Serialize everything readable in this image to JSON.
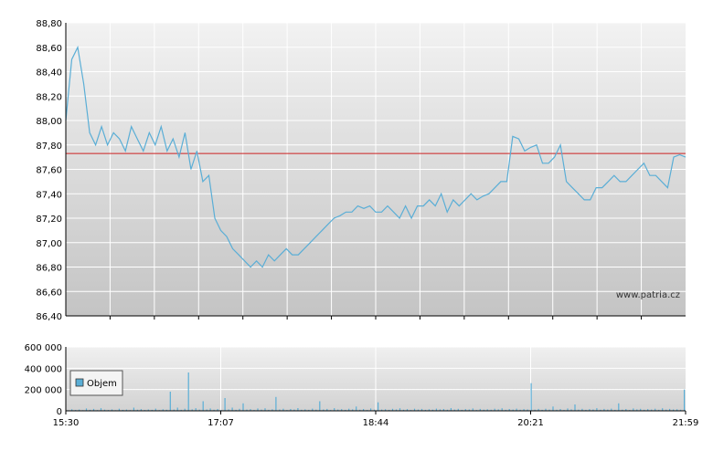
{
  "chart_data": [
    {
      "type": "line",
      "title": "",
      "xlabel": "",
      "ylabel": "",
      "ylim": [
        86.4,
        88.8
      ],
      "yticks": [
        "88,80",
        "88,60",
        "88,40",
        "88,20",
        "88,00",
        "87,80",
        "87,60",
        "87,40",
        "87,20",
        "87,00",
        "86,80",
        "86,60",
        "86,40"
      ],
      "reference_line": 87.73,
      "watermark": "www.patria.cz",
      "grid": true,
      "colors": {
        "line": "#5aaed6",
        "reference": "#cc2222",
        "grid": "#ffffff"
      },
      "series": [
        {
          "values": [
            88.0,
            88.5,
            88.6,
            88.3,
            87.9,
            87.8,
            87.95,
            87.8,
            87.9,
            87.85,
            87.75,
            87.95,
            87.85,
            87.75,
            87.9,
            87.8,
            87.95,
            87.75,
            87.85,
            87.7,
            87.9,
            87.6,
            87.75,
            87.5,
            87.55,
            87.2,
            87.1,
            87.05,
            86.95,
            86.9,
            86.85,
            86.8,
            86.85,
            86.8,
            86.9,
            86.85,
            86.9,
            86.95,
            86.9,
            86.9,
            86.95,
            87.0,
            87.05,
            87.1,
            87.15,
            87.2,
            87.22,
            87.25,
            87.25,
            87.3,
            87.28,
            87.3,
            87.25,
            87.25,
            87.3,
            87.25,
            87.2,
            87.3,
            87.2,
            87.3,
            87.3,
            87.35,
            87.3,
            87.4,
            87.25,
            87.35,
            87.3,
            87.35,
            87.4,
            87.35,
            87.38,
            87.4,
            87.45,
            87.5,
            87.5,
            87.87,
            87.85,
            87.75,
            87.78,
            87.8,
            87.65,
            87.65,
            87.7,
            87.8,
            87.5,
            87.45,
            87.4,
            87.35,
            87.35,
            87.45,
            87.45,
            87.5,
            87.55,
            87.5,
            87.5,
            87.55,
            87.6,
            87.65,
            87.55,
            87.55,
            87.5,
            87.45,
            87.7,
            87.72,
            87.7
          ],
          "x_start": "15:30",
          "x_end": "21:59"
        }
      ],
      "xticks": [
        "15:30",
        "17:07",
        "18:44",
        "20:21",
        "21:59"
      ]
    },
    {
      "type": "bar",
      "ylim": [
        0,
        600000
      ],
      "yticks": [
        "600 000",
        "400 000",
        "200 000",
        "0"
      ],
      "legend": "Objem",
      "legend_position": "left",
      "colors": {
        "bar": "#5aaed6"
      },
      "values": [
        5000,
        15000,
        8000,
        12000,
        6000,
        22000,
        9000,
        18000,
        7000,
        25000,
        11000,
        8000,
        14000,
        6000,
        20000,
        9000,
        12000,
        7000,
        30000,
        10000,
        16000,
        8000,
        13000,
        9000,
        21000,
        7000,
        15000,
        10000,
        180000,
        12000,
        30000,
        9000,
        20000,
        360000,
        14000,
        25000,
        11000,
        90000,
        13000,
        22000,
        10000,
        17000,
        8000,
        120000,
        14000,
        30000,
        9000,
        19000,
        70000,
        12000,
        16000,
        8000,
        22000,
        11000,
        24000,
        9000,
        15000,
        130000,
        13000,
        20000,
        8000,
        17000,
        12000,
        26000,
        10000,
        14000,
        9000,
        21000,
        11000,
        90000,
        13000,
        18000,
        8000,
        25000,
        12000,
        16000,
        9000,
        20000,
        14000,
        40000,
        10000,
        17000,
        8000,
        22000,
        11000,
        80000,
        12000,
        15000,
        9000,
        19000,
        13000,
        24000,
        10000,
        16000,
        8000,
        20000,
        12000,
        18000,
        9000,
        15000,
        11000,
        21000,
        14000,
        17000,
        10000,
        26000,
        12000,
        19000,
        9000,
        16000,
        13000,
        22000,
        8000,
        18000,
        11000,
        15000,
        10000,
        20000,
        14000,
        24000,
        9000,
        17000,
        12000,
        21000,
        10000,
        16000,
        13000,
        260000,
        11000,
        18000,
        9000,
        20000,
        12000,
        40000,
        10000,
        17000,
        8000,
        22000,
        14000,
        60000,
        11000,
        19000,
        9000,
        16000,
        13000,
        25000,
        10000,
        18000,
        12000,
        21000,
        9000,
        70000,
        11000,
        17000,
        8000,
        22000,
        14000,
        19000,
        10000,
        16000,
        12000,
        20000,
        9000,
        24000,
        11000,
        18000,
        13000,
        15000,
        10000,
        200000
      ]
    }
  ]
}
